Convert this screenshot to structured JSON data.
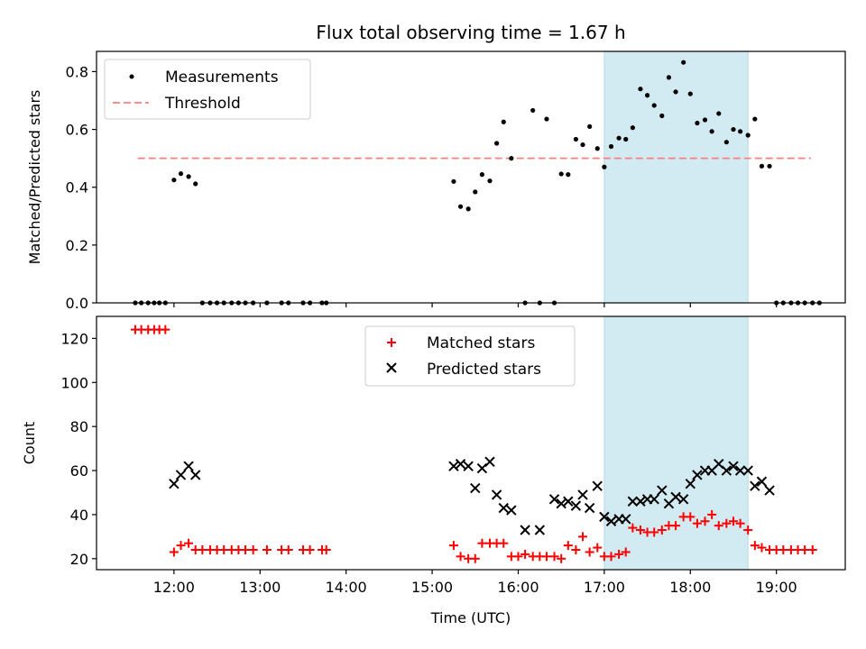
{
  "title": "Flux total observing time = 1.67 h",
  "colors": {
    "measurement": "#000000",
    "threshold": "#ff7f7f",
    "matched": "#ff0000",
    "predicted": "#000000",
    "highlight": "#add8e6"
  },
  "chart_data": [
    {
      "type": "scatter",
      "panel": "top",
      "title": "Flux total observing time = 1.67 h",
      "xlabel": "",
      "ylabel": "Matched/Predicted stars",
      "x_unit": "hours UTC",
      "xlim": [
        11.1,
        19.8
      ],
      "ylim": [
        0,
        0.87
      ],
      "yticks": [
        0.0,
        0.2,
        0.4,
        0.6,
        0.8
      ],
      "ytick_labels": [
        "0.0",
        "0.2",
        "0.4",
        "0.6",
        "0.8"
      ],
      "legend": {
        "position": "top-left",
        "entries": [
          "Measurements",
          "Threshold"
        ]
      },
      "highlight_span": [
        17.0,
        18.67
      ],
      "threshold": {
        "name": "Threshold",
        "y": 0.5,
        "x_range": [
          11.58,
          19.4
        ]
      },
      "series": [
        {
          "name": "Measurements",
          "points": [
            [
              11.55,
              0
            ],
            [
              11.62,
              0
            ],
            [
              11.7,
              0
            ],
            [
              11.77,
              0
            ],
            [
              11.83,
              0
            ],
            [
              11.9,
              0
            ],
            [
              12.0,
              0.425
            ],
            [
              12.08,
              0.447
            ],
            [
              12.17,
              0.437
            ],
            [
              12.25,
              0.412
            ],
            [
              12.33,
              0
            ],
            [
              12.42,
              0
            ],
            [
              12.5,
              0
            ],
            [
              12.58,
              0
            ],
            [
              12.67,
              0
            ],
            [
              12.75,
              0
            ],
            [
              12.83,
              0
            ],
            [
              12.92,
              0
            ],
            [
              13.08,
              0
            ],
            [
              13.25,
              0
            ],
            [
              13.33,
              0
            ],
            [
              13.5,
              0
            ],
            [
              13.58,
              0
            ],
            [
              13.72,
              0
            ],
            [
              13.77,
              0
            ],
            [
              15.25,
              0.42
            ],
            [
              15.33,
              0.333
            ],
            [
              15.42,
              0.325
            ],
            [
              15.5,
              0.384
            ],
            [
              15.58,
              0.444
            ],
            [
              15.67,
              0.422
            ],
            [
              15.75,
              0.552
            ],
            [
              15.83,
              0.626
            ],
            [
              15.92,
              0.5
            ],
            [
              16.08,
              0
            ],
            [
              16.17,
              0.666
            ],
            [
              16.25,
              0
            ],
            [
              16.33,
              0.636
            ],
            [
              16.42,
              0
            ],
            [
              16.5,
              0.446
            ],
            [
              16.58,
              0.444
            ],
            [
              16.67,
              0.566
            ],
            [
              16.75,
              0.547
            ],
            [
              16.83,
              0.61
            ],
            [
              16.92,
              0.534
            ],
            [
              17.0,
              0.47
            ],
            [
              17.08,
              0.541
            ],
            [
              17.17,
              0.57
            ],
            [
              17.25,
              0.566
            ],
            [
              17.33,
              0.606
            ],
            [
              17.42,
              0.74
            ],
            [
              17.5,
              0.718
            ],
            [
              17.58,
              0.683
            ],
            [
              17.67,
              0.647
            ],
            [
              17.75,
              0.78
            ],
            [
              17.83,
              0.73
            ],
            [
              17.92,
              0.832
            ],
            [
              18.0,
              0.723
            ],
            [
              18.08,
              0.622
            ],
            [
              18.17,
              0.633
            ],
            [
              18.25,
              0.593
            ],
            [
              18.33,
              0.655
            ],
            [
              18.42,
              0.556
            ],
            [
              18.5,
              0.6
            ],
            [
              18.58,
              0.593
            ],
            [
              18.67,
              0.58
            ],
            [
              18.75,
              0.636
            ],
            [
              18.83,
              0.473
            ],
            [
              18.92,
              0.473
            ],
            [
              19.0,
              0
            ],
            [
              19.08,
              0
            ],
            [
              19.17,
              0
            ],
            [
              19.25,
              0
            ],
            [
              19.33,
              0
            ],
            [
              19.42,
              0
            ],
            [
              19.5,
              0
            ]
          ]
        }
      ]
    },
    {
      "type": "scatter",
      "panel": "bottom",
      "xlabel": "Time (UTC)",
      "ylabel": "Count",
      "x_unit": "hours UTC",
      "xlim": [
        11.1,
        19.8
      ],
      "ylim": [
        15,
        130
      ],
      "yticks": [
        20,
        40,
        60,
        80,
        100,
        120
      ],
      "ytick_labels": [
        "20",
        "40",
        "60",
        "80",
        "100",
        "120"
      ],
      "xticks": [
        12,
        13,
        14,
        15,
        16,
        17,
        18,
        19
      ],
      "xtick_labels": [
        "12:00",
        "13:00",
        "14:00",
        "15:00",
        "16:00",
        "17:00",
        "18:00",
        "19:00"
      ],
      "legend": {
        "position": "top-center",
        "entries": [
          "Matched stars",
          "Predicted stars"
        ]
      },
      "highlight_span": [
        17.0,
        18.67
      ],
      "series": [
        {
          "name": "Matched stars",
          "marker": "plus",
          "points": [
            [
              11.55,
              124
            ],
            [
              11.62,
              124
            ],
            [
              11.7,
              124
            ],
            [
              11.77,
              124
            ],
            [
              11.83,
              124
            ],
            [
              11.9,
              124
            ],
            [
              12.0,
              23
            ],
            [
              12.08,
              26
            ],
            [
              12.17,
              27
            ],
            [
              12.25,
              24
            ],
            [
              12.33,
              24
            ],
            [
              12.42,
              24
            ],
            [
              12.5,
              24
            ],
            [
              12.58,
              24
            ],
            [
              12.67,
              24
            ],
            [
              12.75,
              24
            ],
            [
              12.83,
              24
            ],
            [
              12.92,
              24
            ],
            [
              13.08,
              24
            ],
            [
              13.25,
              24
            ],
            [
              13.33,
              24
            ],
            [
              13.5,
              24
            ],
            [
              13.58,
              24
            ],
            [
              13.72,
              24
            ],
            [
              13.77,
              24
            ],
            [
              15.25,
              26
            ],
            [
              15.33,
              21
            ],
            [
              15.42,
              20
            ],
            [
              15.5,
              20
            ],
            [
              15.58,
              27
            ],
            [
              15.67,
              27
            ],
            [
              15.75,
              27
            ],
            [
              15.83,
              27
            ],
            [
              15.92,
              21
            ],
            [
              16.0,
              21
            ],
            [
              16.08,
              22
            ],
            [
              16.17,
              21
            ],
            [
              16.25,
              21
            ],
            [
              16.33,
              21
            ],
            [
              16.42,
              21
            ],
            [
              16.5,
              20
            ],
            [
              16.58,
              26
            ],
            [
              16.67,
              24
            ],
            [
              16.75,
              30
            ],
            [
              16.83,
              23
            ],
            [
              16.92,
              25
            ],
            [
              17.0,
              21
            ],
            [
              17.08,
              21
            ],
            [
              17.17,
              22
            ],
            [
              17.25,
              23
            ],
            [
              17.33,
              34
            ],
            [
              17.42,
              33
            ],
            [
              17.5,
              32
            ],
            [
              17.58,
              32
            ],
            [
              17.67,
              33
            ],
            [
              17.75,
              35
            ],
            [
              17.83,
              35
            ],
            [
              17.92,
              39
            ],
            [
              18.0,
              39
            ],
            [
              18.08,
              36
            ],
            [
              18.17,
              37
            ],
            [
              18.25,
              40
            ],
            [
              18.33,
              35
            ],
            [
              18.42,
              36
            ],
            [
              18.5,
              37
            ],
            [
              18.58,
              36
            ],
            [
              18.67,
              33
            ],
            [
              18.75,
              26
            ],
            [
              18.83,
              25
            ],
            [
              18.92,
              24
            ],
            [
              19.0,
              24
            ],
            [
              19.08,
              24
            ],
            [
              19.17,
              24
            ],
            [
              19.25,
              24
            ],
            [
              19.33,
              24
            ],
            [
              19.42,
              24
            ]
          ]
        },
        {
          "name": "Predicted stars",
          "marker": "x",
          "points": [
            [
              12.0,
              54
            ],
            [
              12.08,
              58
            ],
            [
              12.17,
              62
            ],
            [
              12.25,
              58
            ],
            [
              15.25,
              62
            ],
            [
              15.33,
              63
            ],
            [
              15.42,
              62
            ],
            [
              15.5,
              52
            ],
            [
              15.58,
              61
            ],
            [
              15.67,
              64
            ],
            [
              15.75,
              49
            ],
            [
              15.83,
              43
            ],
            [
              15.92,
              42
            ],
            [
              16.08,
              33
            ],
            [
              16.25,
              33
            ],
            [
              16.42,
              47
            ],
            [
              16.5,
              45
            ],
            [
              16.58,
              46
            ],
            [
              16.67,
              44
            ],
            [
              16.75,
              49
            ],
            [
              16.83,
              43
            ],
            [
              16.92,
              53
            ],
            [
              17.0,
              39
            ],
            [
              17.08,
              37
            ],
            [
              17.17,
              38
            ],
            [
              17.25,
              38
            ],
            [
              17.33,
              46
            ],
            [
              17.42,
              46
            ],
            [
              17.5,
              47
            ],
            [
              17.58,
              47
            ],
            [
              17.67,
              51
            ],
            [
              17.75,
              45
            ],
            [
              17.83,
              48
            ],
            [
              17.92,
              47
            ],
            [
              18.0,
              54
            ],
            [
              18.08,
              58
            ],
            [
              18.17,
              60
            ],
            [
              18.25,
              60
            ],
            [
              18.33,
              63
            ],
            [
              18.42,
              60
            ],
            [
              18.5,
              62
            ],
            [
              18.58,
              60
            ],
            [
              18.67,
              60
            ],
            [
              18.75,
              53
            ],
            [
              18.83,
              55
            ],
            [
              18.92,
              51
            ]
          ]
        }
      ]
    }
  ]
}
